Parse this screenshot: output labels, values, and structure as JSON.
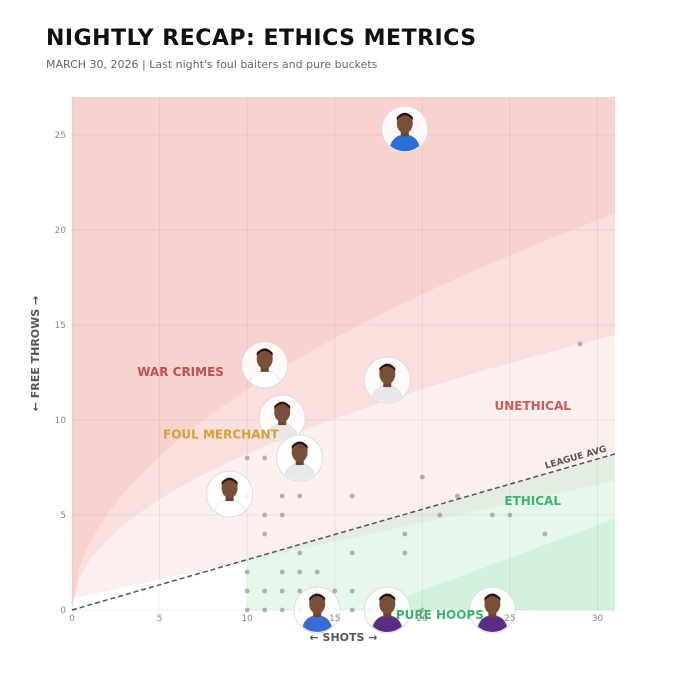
{
  "header": {
    "title": "NIGHTLY RECAP: ETHICS METRICS",
    "subtitle": "MARCH 30, 2026 | Last night's foul baiters and pure buckets"
  },
  "chart_data": {
    "type": "scatter",
    "title": "NIGHTLY RECAP: ETHICS METRICS",
    "xlabel": "← SHOTS →",
    "ylabel": "← FREE THROWS →",
    "xlim": [
      0,
      31
    ],
    "ylim": [
      0,
      27
    ],
    "xticks": [
      0,
      5,
      10,
      15,
      20,
      25,
      30
    ],
    "yticks": [
      0,
      5,
      10,
      15,
      20,
      25
    ],
    "grid": true,
    "league_avg_line": {
      "label": "LEAGUE AVG",
      "slope": 0.265
    },
    "zones": [
      {
        "name": "war-crimes",
        "label": "WAR CRIMES",
        "color": "#c0504d",
        "label_at": [
          6.2,
          12.5
        ]
      },
      {
        "name": "foul-merchant",
        "label": "FOUL MERCHANT",
        "color": "#d4a03a",
        "label_at": [
          8.5,
          9.2
        ]
      },
      {
        "name": "unethical",
        "label": "UNETHICAL",
        "color": "#d05a5a",
        "label_at": [
          26.3,
          10.7
        ]
      },
      {
        "name": "ethical",
        "label": "ETHICAL",
        "color": "#3cb371",
        "label_at": [
          26.3,
          5.7
        ]
      },
      {
        "name": "pure-hoops",
        "label": "PURE HOOPS",
        "color": "#3cb371",
        "label_at": [
          21,
          -0.3
        ]
      }
    ],
    "colors": {
      "red_zone": "#f3b6b1",
      "green_zone": "#b8ecc9",
      "point": "#9a9a9a"
    },
    "featured_players": [
      {
        "x": 19,
        "y": 25.3,
        "jersey": "#2a6fd6"
      },
      {
        "x": 11,
        "y": 12.9,
        "jersey": "#ffffff"
      },
      {
        "x": 18,
        "y": 12.1,
        "jersey": "#e8e8e8"
      },
      {
        "x": 12,
        "y": 10.1,
        "jersey": "#e8e8e8"
      },
      {
        "x": 13,
        "y": 8.0,
        "jersey": "#e8e8e8"
      },
      {
        "x": 9,
        "y": 6.1,
        "jersey": "#ffffff"
      },
      {
        "x": 14,
        "y": 0,
        "jersey": "#3a6bd6"
      },
      {
        "x": 18,
        "y": 0,
        "jersey": "#5a2d82"
      },
      {
        "x": 24,
        "y": 0,
        "jersey": "#5a2d82"
      }
    ],
    "points": [
      {
        "x": 29,
        "y": 14
      },
      {
        "x": 20,
        "y": 7
      },
      {
        "x": 22,
        "y": 6
      },
      {
        "x": 21,
        "y": 5
      },
      {
        "x": 24,
        "y": 5
      },
      {
        "x": 25,
        "y": 5
      },
      {
        "x": 27,
        "y": 4
      },
      {
        "x": 19,
        "y": 4
      },
      {
        "x": 19,
        "y": 3
      },
      {
        "x": 16,
        "y": 6
      },
      {
        "x": 16,
        "y": 3
      },
      {
        "x": 16,
        "y": 1
      },
      {
        "x": 10,
        "y": 8
      },
      {
        "x": 11,
        "y": 8
      },
      {
        "x": 13,
        "y": 7
      },
      {
        "x": 10,
        "y": 6
      },
      {
        "x": 12,
        "y": 6
      },
      {
        "x": 13,
        "y": 6
      },
      {
        "x": 11,
        "y": 5
      },
      {
        "x": 12,
        "y": 5
      },
      {
        "x": 11,
        "y": 4
      },
      {
        "x": 13,
        "y": 3
      },
      {
        "x": 10,
        "y": 2
      },
      {
        "x": 12,
        "y": 2
      },
      {
        "x": 13,
        "y": 2
      },
      {
        "x": 14,
        "y": 2
      },
      {
        "x": 10,
        "y": 1
      },
      {
        "x": 11,
        "y": 1
      },
      {
        "x": 12,
        "y": 1
      },
      {
        "x": 13,
        "y": 1
      },
      {
        "x": 14,
        "y": 1
      },
      {
        "x": 15,
        "y": 1
      },
      {
        "x": 11,
        "y": 0
      },
      {
        "x": 12,
        "y": 0
      },
      {
        "x": 13,
        "y": 0
      },
      {
        "x": 15,
        "y": 0
      },
      {
        "x": 16,
        "y": 0
      },
      {
        "x": 17,
        "y": 0
      },
      {
        "x": 20,
        "y": 0
      },
      {
        "x": 10,
        "y": 0
      }
    ]
  }
}
